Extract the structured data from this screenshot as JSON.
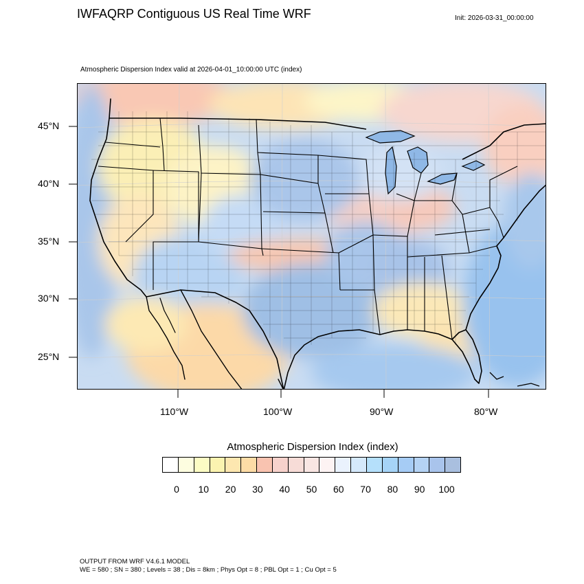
{
  "title": "IWFAQRP Contiguous US Real Time WRF",
  "init": "Init: 2026-03-31_00:00:00",
  "subtitle": "Atmospheric Dispersion Index valid at 2026-04-01_10:00:00 UTC   (index)",
  "lat_labels": [
    "45°N",
    "40°N",
    "35°N",
    "30°N",
    "25°N"
  ],
  "lon_labels": [
    "110°W",
    "100°W",
    "90°W",
    "80°W"
  ],
  "legend": {
    "title": "Atmospheric Dispersion Index  (index)",
    "ticks": [
      "0",
      "10",
      "20",
      "30",
      "40",
      "50",
      "60",
      "70",
      "80",
      "90",
      "100"
    ],
    "colors": [
      "#ffffff",
      "#fdfde0",
      "#fcfcc4",
      "#fbf3b0",
      "#fde7b0",
      "#fddca6",
      "#f9c3b0",
      "#f7d2cc",
      "#f7dcd7",
      "#f9e6e3",
      "#fdf3f3",
      "#eaf2fd",
      "#d5e9fb",
      "#b5e0fb",
      "#a6d4f7",
      "#a6ccf5",
      "#b5d3f4",
      "#a9c4ec",
      "#a9bfdf"
    ]
  },
  "footer": {
    "line1": "OUTPUT FROM WRF V4.6.1 MODEL",
    "line2": "WE = 580 ; SN = 380 ; Levels = 38 ; Dis = 8km ; Phys Opt = 8 ; PBL Opt = 1 ; Cu Opt = 5"
  }
}
